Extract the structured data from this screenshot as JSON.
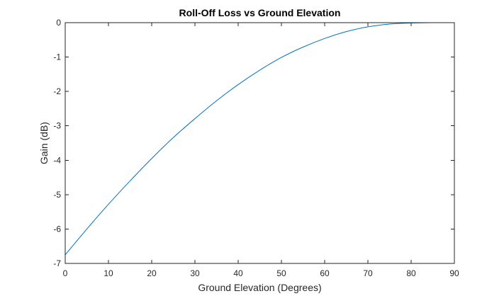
{
  "chart_data": {
    "type": "line",
    "title": "Roll-Off Loss vs Ground Elevation",
    "xlabel": "Ground Elevation (Degrees)",
    "ylabel": "Gain (dB)",
    "xlim": [
      0,
      90
    ],
    "ylim": [
      -7,
      0
    ],
    "xticks": [
      0,
      10,
      20,
      30,
      40,
      50,
      60,
      70,
      80,
      90
    ],
    "yticks": [
      0,
      -1,
      -2,
      -3,
      -4,
      -5,
      -6,
      -7
    ],
    "grid": false,
    "line_color": "#0072BD",
    "series": [
      {
        "x": [
          0,
          5,
          10,
          15,
          20,
          25,
          30,
          35,
          40,
          45,
          50,
          55,
          60,
          65,
          70,
          75,
          80,
          85,
          90
        ],
        "values": [
          -6.75,
          -6.0,
          -5.28,
          -4.6,
          -3.95,
          -3.34,
          -2.79,
          -2.27,
          -1.8,
          -1.38,
          -1.01,
          -0.71,
          -0.46,
          -0.26,
          -0.12,
          -0.04,
          -0.01,
          0.0,
          0.0
        ]
      }
    ]
  }
}
